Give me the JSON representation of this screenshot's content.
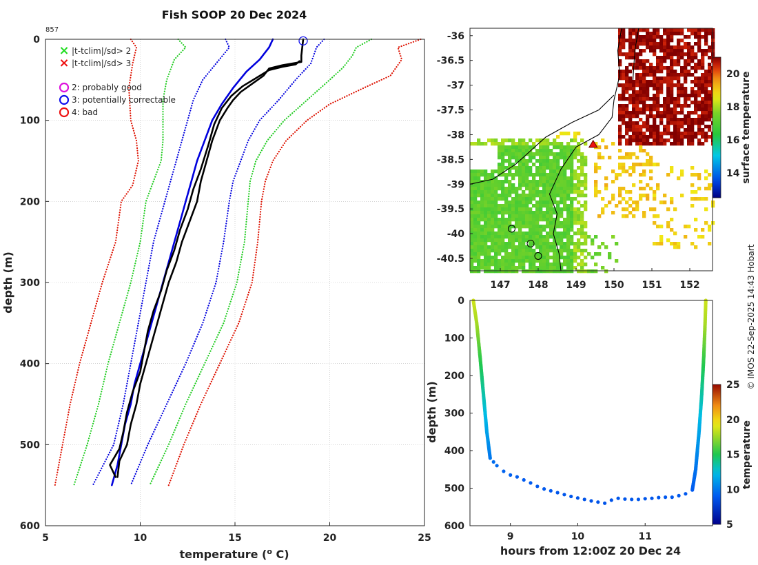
{
  "figure": {
    "title": "Fish SOOP 20 Dec 2024",
    "profile_id": "857",
    "watermark": "© IMOS 22-Sep-2025 14:43 Hobart"
  },
  "chart_data": [
    {
      "type": "line",
      "name": "profile",
      "title": "Fish SOOP 20 Dec 2024",
      "xlabel": "temperature (°C)",
      "ylabel": "depth (m)",
      "xlim": [
        5,
        25
      ],
      "ylim": [
        0,
        600
      ],
      "y_inverted": true,
      "xticks": [
        5,
        10,
        15,
        20,
        25
      ],
      "yticks": [
        0,
        100,
        200,
        300,
        400,
        500,
        600
      ],
      "grid": true,
      "legend": {
        "position": "top-left",
        "markers": [
          {
            "symbol": "×",
            "color": "#22dd22",
            "label": "|t-tclim|/sd> 2"
          },
          {
            "symbol": "×",
            "color": "#ee1111",
            "label": "|t-tclim|/sd> 3"
          }
        ],
        "flags": [
          {
            "symbol": "○",
            "color": "#dd11dd",
            "label": "2: probably good"
          },
          {
            "symbol": "○",
            "color": "#1111ee",
            "label": "3: potentially correctable"
          },
          {
            "symbol": "○",
            "color": "#ee1111",
            "label": "4: bad"
          }
        ]
      },
      "flag_marker": {
        "x": 18.6,
        "y": 2,
        "color": "#1111ee"
      },
      "series": [
        {
          "name": "climatology mean",
          "style": "solid",
          "color": "#0000dd",
          "points": [
            [
              17.0,
              0
            ],
            [
              16.8,
              10
            ],
            [
              16.3,
              25
            ],
            [
              15.6,
              40
            ],
            [
              14.9,
              60
            ],
            [
              14.3,
              80
            ],
            [
              13.8,
              100
            ],
            [
              13.4,
              125
            ],
            [
              13.0,
              150
            ],
            [
              12.7,
              175
            ],
            [
              12.4,
              200
            ],
            [
              12.1,
              225
            ],
            [
              11.8,
              250
            ],
            [
              11.5,
              275
            ],
            [
              11.2,
              300
            ],
            [
              10.9,
              325
            ],
            [
              10.6,
              350
            ],
            [
              10.3,
              375
            ],
            [
              10.0,
              400
            ],
            [
              9.7,
              425
            ],
            [
              9.5,
              450
            ],
            [
              9.2,
              475
            ],
            [
              9.0,
              500
            ],
            [
              8.8,
              525
            ],
            [
              8.5,
              550
            ]
          ]
        },
        {
          "name": "clim -1sd",
          "style": "dotted",
          "color": "#0000dd",
          "points": [
            [
              14.5,
              0
            ],
            [
              14.7,
              10
            ],
            [
              14.0,
              30
            ],
            [
              13.3,
              50
            ],
            [
              12.8,
              75
            ],
            [
              12.5,
              100
            ],
            [
              12.2,
              125
            ],
            [
              11.9,
              150
            ],
            [
              11.6,
              175
            ],
            [
              11.3,
              200
            ],
            [
              11.0,
              225
            ],
            [
              10.7,
              250
            ],
            [
              10.3,
              300
            ],
            [
              9.9,
              350
            ],
            [
              9.5,
              400
            ],
            [
              9.1,
              450
            ],
            [
              8.6,
              500
            ],
            [
              7.5,
              550
            ]
          ]
        },
        {
          "name": "clim +1sd",
          "style": "dotted",
          "color": "#0000dd",
          "points": [
            [
              19.7,
              0
            ],
            [
              19.3,
              10
            ],
            [
              19.0,
              30
            ],
            [
              18.2,
              50
            ],
            [
              17.3,
              75
            ],
            [
              16.3,
              100
            ],
            [
              15.7,
              125
            ],
            [
              15.3,
              150
            ],
            [
              14.9,
              175
            ],
            [
              14.7,
              200
            ],
            [
              14.4,
              250
            ],
            [
              14.0,
              300
            ],
            [
              13.3,
              350
            ],
            [
              12.4,
              400
            ],
            [
              11.4,
              450
            ],
            [
              10.4,
              500
            ],
            [
              9.5,
              550
            ]
          ]
        },
        {
          "name": "clim -2sd",
          "style": "dotted",
          "color": "#22cc22",
          "points": [
            [
              12.0,
              0
            ],
            [
              12.4,
              10
            ],
            [
              11.8,
              25
            ],
            [
              11.4,
              50
            ],
            [
              11.2,
              75
            ],
            [
              11.2,
              100
            ],
            [
              11.2,
              125
            ],
            [
              11.1,
              150
            ],
            [
              10.7,
              175
            ],
            [
              10.3,
              200
            ],
            [
              10.0,
              250
            ],
            [
              9.5,
              300
            ],
            [
              8.9,
              350
            ],
            [
              8.3,
              400
            ],
            [
              7.8,
              450
            ],
            [
              7.2,
              500
            ],
            [
              6.5,
              550
            ]
          ]
        },
        {
          "name": "clim +2sd",
          "style": "dotted",
          "color": "#22cc22",
          "points": [
            [
              22.2,
              0
            ],
            [
              21.4,
              10
            ],
            [
              21.2,
              20
            ],
            [
              20.7,
              35
            ],
            [
              20.0,
              50
            ],
            [
              18.8,
              75
            ],
            [
              17.6,
              100
            ],
            [
              16.7,
              125
            ],
            [
              16.1,
              150
            ],
            [
              15.8,
              175
            ],
            [
              15.7,
              200
            ],
            [
              15.5,
              250
            ],
            [
              15.1,
              300
            ],
            [
              14.4,
              350
            ],
            [
              13.4,
              400
            ],
            [
              12.4,
              450
            ],
            [
              11.5,
              500
            ],
            [
              10.5,
              550
            ]
          ]
        },
        {
          "name": "clim -3sd",
          "style": "dotted",
          "color": "#dd1100",
          "points": [
            [
              9.5,
              0
            ],
            [
              9.8,
              10
            ],
            [
              9.6,
              30
            ],
            [
              9.4,
              60
            ],
            [
              9.5,
              100
            ],
            [
              9.8,
              125
            ],
            [
              9.9,
              150
            ],
            [
              9.6,
              180
            ],
            [
              9.0,
              200
            ],
            [
              8.7,
              250
            ],
            [
              8.0,
              300
            ],
            [
              7.4,
              350
            ],
            [
              6.8,
              400
            ],
            [
              6.3,
              450
            ],
            [
              5.9,
              500
            ],
            [
              5.5,
              550
            ]
          ]
        },
        {
          "name": "clim +3sd",
          "style": "dotted",
          "color": "#dd1100",
          "points": [
            [
              24.8,
              0
            ],
            [
              23.6,
              10
            ],
            [
              23.8,
              25
            ],
            [
              23.2,
              45
            ],
            [
              21.8,
              60
            ],
            [
              20.0,
              80
            ],
            [
              18.8,
              100
            ],
            [
              17.7,
              125
            ],
            [
              17.0,
              150
            ],
            [
              16.6,
              175
            ],
            [
              16.4,
              200
            ],
            [
              16.2,
              250
            ],
            [
              15.9,
              300
            ],
            [
              15.2,
              350
            ],
            [
              14.2,
              400
            ],
            [
              13.2,
              450
            ],
            [
              12.3,
              500
            ],
            [
              11.5,
              550
            ]
          ]
        },
        {
          "name": "observed (down)",
          "style": "solid",
          "color": "#000000",
          "points": [
            [
              18.6,
              0
            ],
            [
              18.5,
              20
            ],
            [
              18.5,
              28
            ],
            [
              17.5,
              32
            ],
            [
              16.8,
              36
            ],
            [
              16.5,
              45
            ],
            [
              15.9,
              55
            ],
            [
              15.3,
              65
            ],
            [
              14.9,
              75
            ],
            [
              14.6,
              85
            ],
            [
              14.2,
              100
            ],
            [
              13.8,
              125
            ],
            [
              13.5,
              150
            ],
            [
              13.2,
              175
            ],
            [
              13.0,
              200
            ],
            [
              12.6,
              225
            ],
            [
              12.2,
              250
            ],
            [
              11.9,
              275
            ],
            [
              11.5,
              300
            ],
            [
              11.2,
              325
            ],
            [
              10.9,
              350
            ],
            [
              10.6,
              375
            ],
            [
              10.3,
              400
            ],
            [
              10.0,
              425
            ],
            [
              9.8,
              450
            ],
            [
              9.5,
              475
            ],
            [
              9.3,
              500
            ],
            [
              8.9,
              520
            ],
            [
              8.8,
              540
            ]
          ]
        },
        {
          "name": "observed (up)",
          "style": "solid",
          "color": "#000000",
          "points": [
            [
              8.7,
              540
            ],
            [
              8.4,
              525
            ],
            [
              8.9,
              505
            ],
            [
              9.1,
              485
            ],
            [
              9.3,
              460
            ],
            [
              9.6,
              435
            ],
            [
              10.0,
              410
            ],
            [
              10.2,
              385
            ],
            [
              10.4,
              360
            ],
            [
              10.7,
              335
            ],
            [
              11.1,
              310
            ],
            [
              11.4,
              285
            ],
            [
              11.8,
              260
            ],
            [
              12.1,
              235
            ],
            [
              12.5,
              210
            ],
            [
              12.8,
              185
            ],
            [
              13.2,
              160
            ],
            [
              13.6,
              130
            ],
            [
              13.9,
              105
            ],
            [
              14.3,
              85
            ],
            [
              14.8,
              70
            ],
            [
              15.4,
              58
            ],
            [
              16.1,
              48
            ],
            [
              16.8,
              38
            ],
            [
              17.5,
              34
            ],
            [
              18.2,
              31
            ],
            [
              18.4,
              27
            ]
          ]
        }
      ]
    },
    {
      "type": "heatmap",
      "name": "map",
      "colorbar_label": "surface temperature",
      "color_range": [
        12.5,
        21
      ],
      "colorbar_ticks": [
        14,
        16,
        18,
        20
      ],
      "xticks": [
        "147",
        "148",
        "149",
        "150",
        "151",
        "152"
      ],
      "yticks": [
        "-36",
        "-36.5",
        "-37",
        "-37.5",
        "-38",
        "-38.5",
        "-39",
        "-39.5",
        "-40",
        "-40.5"
      ],
      "xlim": [
        146.2,
        152.6
      ],
      "ylim": [
        -40.75,
        -35.85
      ],
      "marker": {
        "lon": 149.45,
        "lat": -38.2,
        "color": "#ee1111"
      }
    },
    {
      "type": "scatter",
      "name": "depth-time",
      "xlabel": "hours from 12:00Z 20 Dec 24",
      "ylabel": "depth (m)",
      "xlim": [
        8.4,
        12.0
      ],
      "ylim": [
        0,
        600
      ],
      "y_inverted": true,
      "xticks": [
        9,
        10,
        11
      ],
      "yticks": [
        0,
        100,
        200,
        300,
        400,
        500,
        600
      ],
      "colorbar_label": "temperature",
      "color_range": [
        5,
        25
      ],
      "colorbar_ticks": [
        5,
        10,
        15,
        20,
        25
      ],
      "points": [
        [
          8.45,
          0,
          18.7
        ],
        [
          8.5,
          60,
          17.8
        ],
        [
          8.55,
          150,
          15.5
        ],
        [
          8.6,
          250,
          13.5
        ],
        [
          8.65,
          350,
          11.5
        ],
        [
          8.7,
          420,
          10
        ],
        [
          8.75,
          430,
          9.6
        ],
        [
          8.8,
          440,
          9.5
        ],
        [
          8.9,
          455,
          9.3
        ],
        [
          9.0,
          465,
          9.2
        ],
        [
          9.1,
          470,
          9.1
        ],
        [
          9.2,
          478,
          9.0
        ],
        [
          9.3,
          486,
          9.0
        ],
        [
          9.4,
          495,
          8.9
        ],
        [
          9.5,
          502,
          8.9
        ],
        [
          9.6,
          507,
          8.9
        ],
        [
          9.7,
          512,
          8.8
        ],
        [
          9.8,
          517,
          8.8
        ],
        [
          9.9,
          522,
          8.8
        ],
        [
          10.0,
          526,
          8.8
        ],
        [
          10.1,
          530,
          8.7
        ],
        [
          10.2,
          534,
          8.7
        ],
        [
          10.3,
          537,
          8.7
        ],
        [
          10.4,
          540,
          8.7
        ],
        [
          10.5,
          532,
          8.7
        ],
        [
          10.6,
          527,
          8.8
        ],
        [
          10.7,
          529,
          8.8
        ],
        [
          10.8,
          530,
          8.8
        ],
        [
          10.9,
          530,
          8.8
        ],
        [
          11.0,
          528,
          8.8
        ],
        [
          11.1,
          527,
          8.8
        ],
        [
          11.2,
          525,
          8.8
        ],
        [
          11.3,
          524,
          8.9
        ],
        [
          11.4,
          524,
          8.9
        ],
        [
          11.5,
          520,
          8.9
        ],
        [
          11.6,
          515,
          8.9
        ],
        [
          11.7,
          505,
          9.0
        ],
        [
          11.75,
          450,
          9.8
        ],
        [
          11.8,
          350,
          11.5
        ],
        [
          11.84,
          250,
          13.5
        ],
        [
          11.87,
          150,
          15.5
        ],
        [
          11.89,
          60,
          17.8
        ],
        [
          11.9,
          0,
          18.6
        ]
      ]
    }
  ]
}
